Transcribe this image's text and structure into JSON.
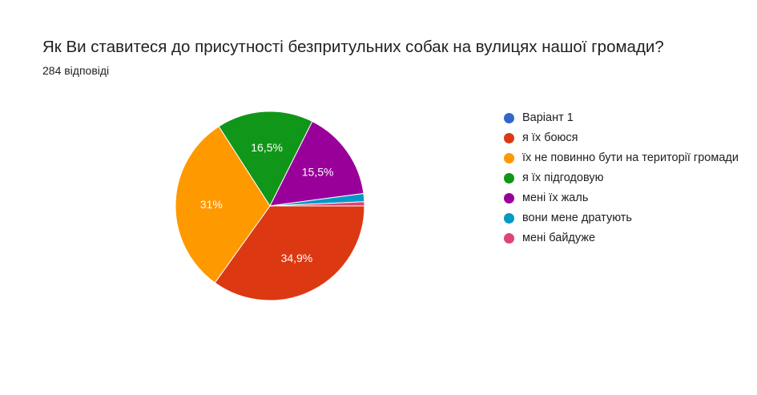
{
  "header": {
    "title": "Як Ви ставитеся до присутності безпритульних собак на вулицях нашої громади?",
    "responses": "284 відповіді"
  },
  "chart_data": {
    "type": "pie",
    "title": "Як Ви ставитеся до присутності безпритульних собак на вулицях нашої громади?",
    "total_responses": 284,
    "legend_position": "right",
    "slices": [
      {
        "name": "Варіант 1",
        "value": 0,
        "color": "#3366cc",
        "label": ""
      },
      {
        "name": "я їх боюся",
        "value": 34.9,
        "color": "#dc3912",
        "label": "34,9%"
      },
      {
        "name": "їх не повинно бути на території громади",
        "value": 31.0,
        "color": "#ff9900",
        "label": "31%"
      },
      {
        "name": "я їх підгодовую",
        "value": 16.5,
        "color": "#109618",
        "label": "16,5%"
      },
      {
        "name": "мені їх жаль",
        "value": 15.5,
        "color": "#990099",
        "label": "15,5%"
      },
      {
        "name": "вони мене дратують",
        "value": 1.4,
        "color": "#0099c6",
        "label": ""
      },
      {
        "name": "мені байдуже",
        "value": 0.7,
        "color": "#dd4477",
        "label": ""
      }
    ]
  }
}
